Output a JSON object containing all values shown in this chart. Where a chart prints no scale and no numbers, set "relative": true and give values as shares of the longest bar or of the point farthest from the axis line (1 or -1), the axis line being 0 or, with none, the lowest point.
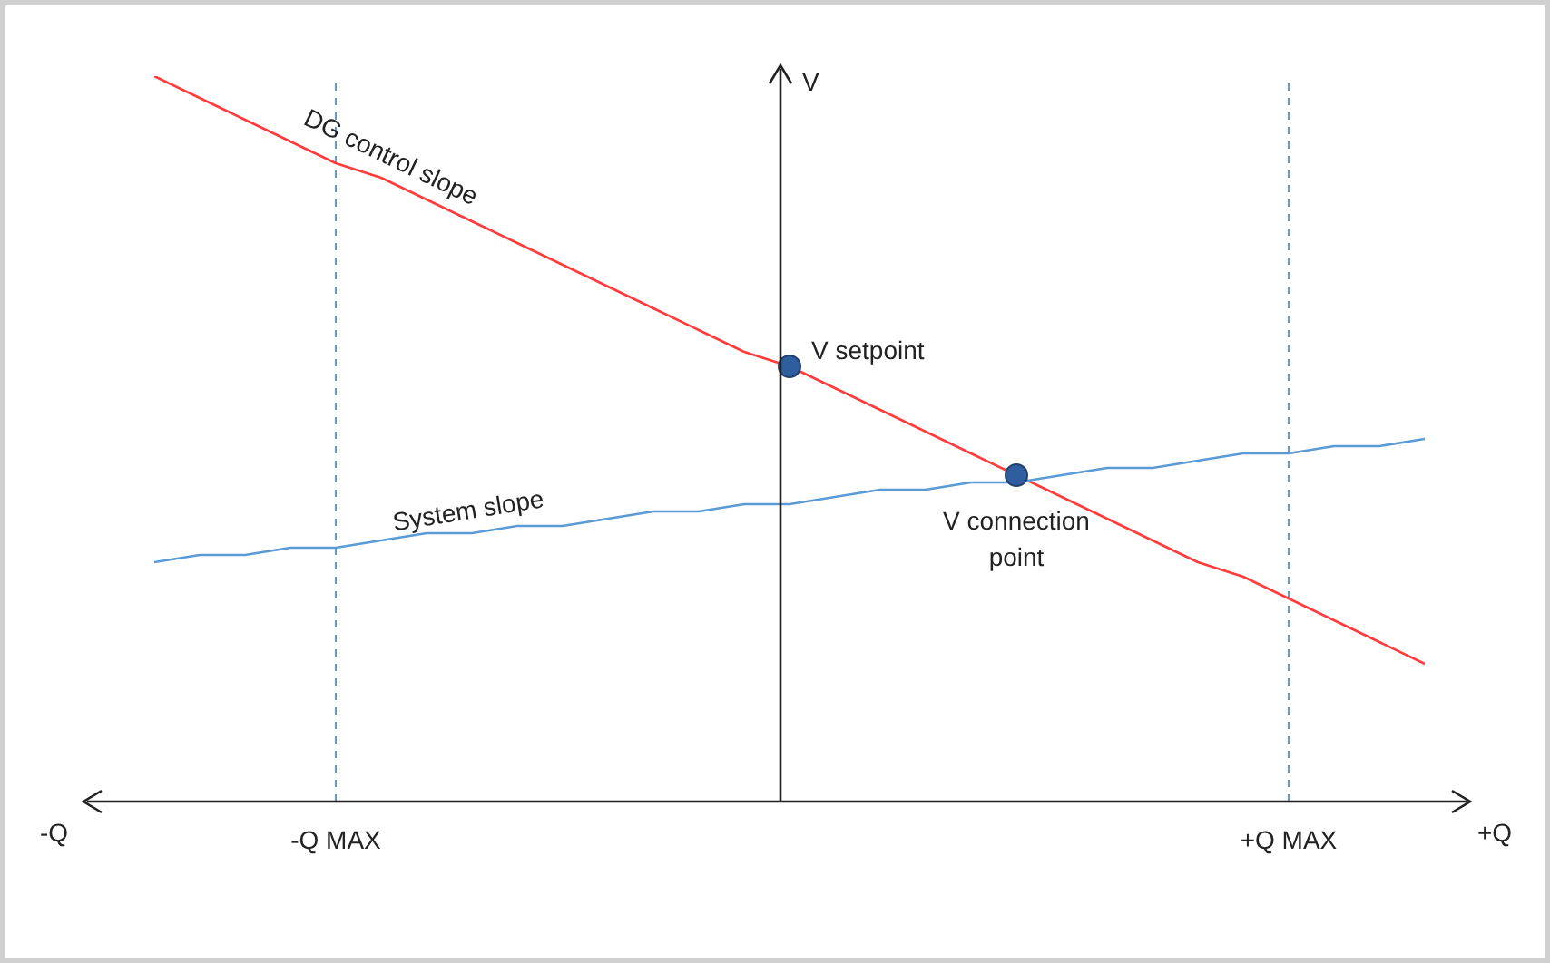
{
  "chart_data": {
    "type": "line",
    "relative": true,
    "ylabel": "V",
    "categories": [
      null,
      null,
      null,
      null,
      "-Q MAX",
      null,
      null,
      null,
      null,
      null,
      null,
      null,
      null,
      null,
      null,
      null,
      null,
      null,
      null,
      null,
      null,
      null,
      null,
      null,
      null,
      "+Q MAX",
      null,
      null,
      null
    ],
    "series": [
      {
        "name": "DG control slope",
        "color": "#ff3b3b",
        "values": [
          1.0,
          0.97,
          0.94,
          0.91,
          0.88,
          0.86,
          0.83,
          0.8,
          0.77,
          0.74,
          0.71,
          0.68,
          0.65,
          0.62,
          0.6,
          0.57,
          0.54,
          0.51,
          0.48,
          0.45,
          0.42,
          0.39,
          0.36,
          0.33,
          0.31,
          0.28,
          0.25,
          0.22,
          0.19
        ]
      },
      {
        "name": "System slope",
        "color": "#5b9bd5",
        "values": [
          0.33,
          0.34,
          0.34,
          0.35,
          0.35,
          0.36,
          0.37,
          0.37,
          0.38,
          0.38,
          0.39,
          0.4,
          0.4,
          0.41,
          0.41,
          0.42,
          0.43,
          0.43,
          0.44,
          0.44,
          0.45,
          0.46,
          0.46,
          0.47,
          0.48,
          0.48,
          0.49,
          0.49,
          0.5
        ]
      },
      {
        "type": "scatter",
        "marker": "circle",
        "color": "#2e5e9e",
        "values": [
          null,
          null,
          null,
          null,
          null,
          null,
          null,
          null,
          null,
          null,
          null,
          null,
          null,
          null,
          0.6,
          null,
          null,
          null,
          null,
          0.45,
          null,
          null,
          null,
          null,
          null,
          null,
          null,
          null,
          null
        ]
      }
    ],
    "annotations": [
      "V setpoint",
      "V connection point",
      "-Q",
      "+Q"
    ],
    "ref_lines": [
      {
        "axis": "x",
        "value": "-Q MAX",
        "color": "#5b9bd5",
        "line_style": "dashed"
      },
      {
        "axis": "x",
        "value": "+Q MAX",
        "color": "#5b9bd5",
        "line_style": "dashed"
      }
    ],
    "grid": false,
    "legend": false,
    "marker": "none",
    "line_style": "solid"
  }
}
